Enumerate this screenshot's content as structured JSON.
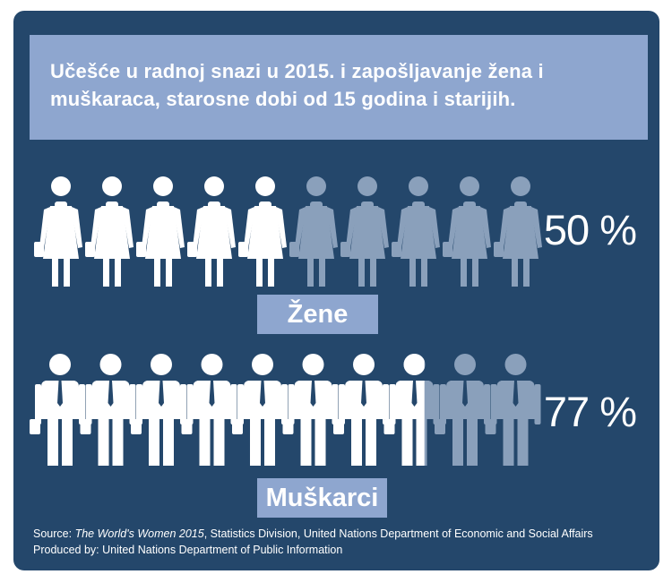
{
  "title": "Učešće u radnoj snazi u 2015. i zapošljavanje žena i muškaraca, starosne dobi od 15 godina i starijih.",
  "colors": {
    "background": "#24476b",
    "panel": "#8ea6cf",
    "filled": "#ffffff",
    "empty": "#8aa0bb"
  },
  "women": {
    "label": "Žene",
    "percent_text": "50 %",
    "icon": "woman-with-handbag-icon",
    "total_figures": 10,
    "filled_figures": 5
  },
  "men": {
    "label": "Muškarci",
    "percent_text": "77 %",
    "icon": "man-with-tie-and-briefcase-icon",
    "total_figures": 10,
    "filled_figures": 7.7
  },
  "source": {
    "prefix": "Source: ",
    "publication": "The World's Women 2015",
    "rest": ", Statistics Division, United Nations Department of Economic and Social Affairs",
    "produced_by": "Produced by: United Nations Department of Public Information"
  }
}
